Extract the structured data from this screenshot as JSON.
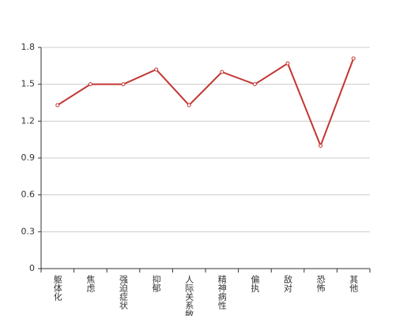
{
  "chart_data": {
    "type": "line",
    "categories": [
      "躯体化",
      "焦虑",
      "强迫症状",
      "抑郁",
      "人际关系敏感",
      "精神病性",
      "偏执",
      "敌对",
      "恐怖",
      "其他"
    ],
    "values": [
      1.33,
      1.5,
      1.5,
      1.62,
      1.33,
      1.6,
      1.5,
      1.67,
      1.0,
      1.71
    ],
    "color": "#c23531",
    "ylim": [
      0,
      1.8
    ],
    "yticks": [
      0,
      0.3,
      0.6,
      0.9,
      1.2,
      1.5,
      1.8
    ],
    "grid": true
  }
}
